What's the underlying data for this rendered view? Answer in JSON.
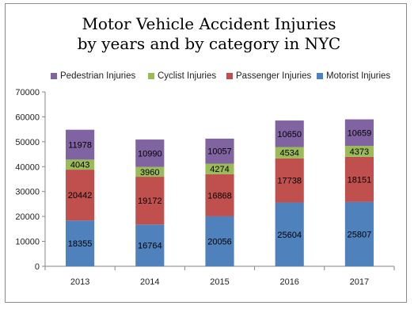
{
  "chart_data": {
    "type": "bar",
    "stacked": true,
    "title_line1": "Motor Vehicle Accident Injuries",
    "title_line2": "by years and by category in NYC",
    "xlabel": "",
    "ylabel": "",
    "categories": [
      "2013",
      "2014",
      "2015",
      "2016",
      "2017"
    ],
    "ylim": [
      0,
      70000
    ],
    "yticks": [
      "0",
      "10000",
      "20000",
      "30000",
      "40000",
      "50000",
      "60000",
      "70000"
    ],
    "grid": false,
    "legend_position": "top",
    "series": [
      {
        "name": "Motorist Injuries",
        "color": "#4f81bd",
        "values": [
          18355,
          16764,
          20056,
          25604,
          25807
        ]
      },
      {
        "name": "Passenger Injuries",
        "color": "#c0504d",
        "values": [
          20442,
          19172,
          16868,
          17738,
          18151
        ]
      },
      {
        "name": "Cyclist Injuries",
        "color": "#9bbb59",
        "values": [
          4043,
          3960,
          4274,
          4534,
          4373
        ]
      },
      {
        "name": "Pedestrian Injuries",
        "color": "#8064a2",
        "values": [
          11978,
          10990,
          10057,
          10650,
          10659
        ]
      }
    ],
    "legend_order": [
      3,
      2,
      1,
      0
    ]
  }
}
